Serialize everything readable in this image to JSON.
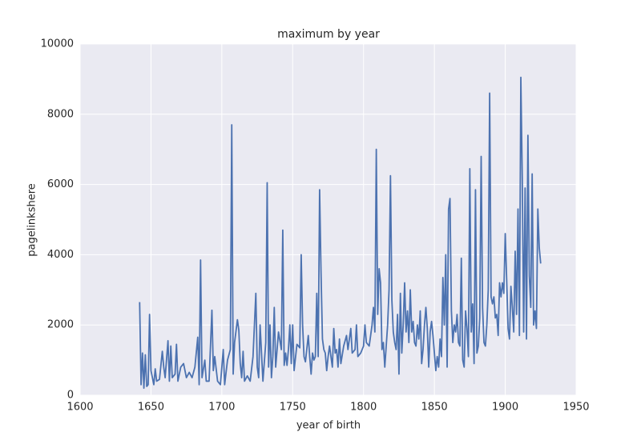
{
  "chart_data": {
    "type": "line",
    "title": "maximum by year",
    "xlabel": "year of birth",
    "ylabel": "pagelinkshere",
    "color": "#4c72b0",
    "grid": true,
    "xlim": [
      1600,
      1950
    ],
    "xticks": [
      1600,
      1650,
      1700,
      1750,
      1800,
      1850,
      1900,
      1950
    ],
    "ylim": [
      0,
      10000
    ],
    "yticks": [
      0,
      2000,
      4000,
      6000,
      8000,
      10000
    ],
    "x": [
      1642,
      1643,
      1644,
      1645,
      1646,
      1647,
      1648,
      1649,
      1650,
      1651,
      1652,
      1653,
      1654,
      1656,
      1658,
      1659,
      1660,
      1662,
      1663,
      1664,
      1665,
      1667,
      1668,
      1669,
      1671,
      1673,
      1675,
      1677,
      1679,
      1681,
      1683,
      1684,
      1685,
      1686,
      1688,
      1689,
      1691,
      1693,
      1694,
      1695,
      1697,
      1699,
      1701,
      1702,
      1704,
      1706,
      1707,
      1708,
      1709,
      1711,
      1712,
      1713,
      1714,
      1715,
      1716,
      1718,
      1720,
      1722,
      1724,
      1725,
      1726,
      1727,
      1728,
      1729,
      1731,
      1732,
      1733,
      1734,
      1735,
      1736,
      1737,
      1738,
      1740,
      1742,
      1743,
      1744,
      1745,
      1746,
      1747,
      1748,
      1749,
      1750,
      1751,
      1753,
      1755,
      1756,
      1757,
      1758,
      1759,
      1761,
      1762,
      1763,
      1764,
      1765,
      1766,
      1767,
      1768,
      1769,
      1770,
      1771,
      1772,
      1773,
      1774,
      1775,
      1776,
      1778,
      1779,
      1780,
      1781,
      1782,
      1783,
      1784,
      1786,
      1788,
      1789,
      1790,
      1791,
      1792,
      1794,
      1795,
      1796,
      1798,
      1800,
      1801,
      1802,
      1804,
      1806,
      1807,
      1808,
      1809,
      1810,
      1811,
      1812,
      1813,
      1814,
      1815,
      1817,
      1818,
      1819,
      1820,
      1821,
      1822,
      1823,
      1824,
      1825,
      1826,
      1827,
      1828,
      1829,
      1830,
      1831,
      1832,
      1833,
      1834,
      1835,
      1836,
      1837,
      1838,
      1839,
      1840,
      1841,
      1842,
      1843,
      1844,
      1845,
      1846,
      1847,
      1848,
      1849,
      1850,
      1851,
      1852,
      1853,
      1854,
      1855,
      1856,
      1857,
      1858,
      1859,
      1860,
      1861,
      1862,
      1863,
      1864,
      1865,
      1866,
      1867,
      1868,
      1869,
      1870,
      1871,
      1872,
      1873,
      1874,
      1875,
      1876,
      1877,
      1878,
      1879,
      1880,
      1881,
      1882,
      1883,
      1884,
      1885,
      1886,
      1887,
      1888,
      1889,
      1890,
      1891,
      1892,
      1893,
      1894,
      1895,
      1896,
      1897,
      1898,
      1899,
      1900,
      1901,
      1902,
      1903,
      1904,
      1905,
      1906,
      1907,
      1908,
      1909,
      1910,
      1911,
      1912,
      1913,
      1914,
      1915,
      1916,
      1917,
      1918,
      1919,
      1920,
      1921,
      1922,
      1923,
      1924,
      1925
    ],
    "values": [
      2650,
      300,
      1200,
      200,
      1150,
      250,
      300,
      2300,
      700,
      500,
      300,
      750,
      400,
      450,
      1250,
      800,
      500,
      1550,
      400,
      1400,
      500,
      600,
      1450,
      400,
      800,
      900,
      500,
      650,
      500,
      800,
      1650,
      300,
      3850,
      500,
      1000,
      400,
      400,
      2420,
      700,
      1100,
      400,
      300,
      1300,
      300,
      1000,
      1300,
      7700,
      600,
      1500,
      2150,
      1850,
      900,
      500,
      1250,
      400,
      550,
      400,
      1100,
      2900,
      800,
      500,
      2000,
      1200,
      400,
      1500,
      6050,
      800,
      2000,
      500,
      1100,
      2500,
      800,
      1800,
      1300,
      4700,
      850,
      1200,
      850,
      1300,
      2000,
      900,
      2000,
      700,
      1450,
      1350,
      4000,
      2000,
      1100,
      950,
      1700,
      1100,
      600,
      1200,
      1000,
      1100,
      2900,
      1100,
      5850,
      3500,
      1600,
      1300,
      1200,
      700,
      1100,
      1400,
      800,
      1900,
      1200,
      1300,
      800,
      1600,
      900,
      1400,
      1700,
      1300,
      1600,
      1900,
      1200,
      1300,
      2000,
      1100,
      1200,
      1400,
      2000,
      1500,
      1400,
      2000,
      2500,
      1800,
      7000,
      2300,
      3600,
      3200,
      1300,
      1500,
      800,
      2000,
      3000,
      6250,
      2700,
      1800,
      1500,
      1300,
      2300,
      600,
      2900,
      1200,
      2000,
      3200,
      1800,
      2400,
      1500,
      3000,
      1800,
      2100,
      1500,
      1400,
      2000,
      1600,
      2400,
      900,
      1300,
      2000,
      2500,
      1900,
      800,
      1800,
      2100,
      1700,
      1200,
      700,
      1100,
      800,
      1600,
      1100,
      3350,
      2000,
      4000,
      800,
      5300,
      5600,
      2400,
      1500,
      2000,
      1800,
      2300,
      1500,
      1400,
      3900,
      1000,
      800,
      2400,
      1900,
      1100,
      6450,
      1800,
      2600,
      900,
      5850,
      1200,
      1400,
      2200,
      6800,
      2500,
      1500,
      1400,
      2000,
      3000,
      8600,
      2800,
      2600,
      2800,
      2200,
      2300,
      1700,
      3200,
      2800,
      3200,
      2900,
      4600,
      3300,
      1900,
      1600,
      3100,
      2500,
      1800,
      4100,
      2300,
      5300,
      1700,
      9050,
      6200,
      1800,
      5900,
      1600,
      7400,
      3400,
      2500,
      6300,
      2000,
      2400,
      1900,
      5300,
      4200,
      3750
    ]
  }
}
